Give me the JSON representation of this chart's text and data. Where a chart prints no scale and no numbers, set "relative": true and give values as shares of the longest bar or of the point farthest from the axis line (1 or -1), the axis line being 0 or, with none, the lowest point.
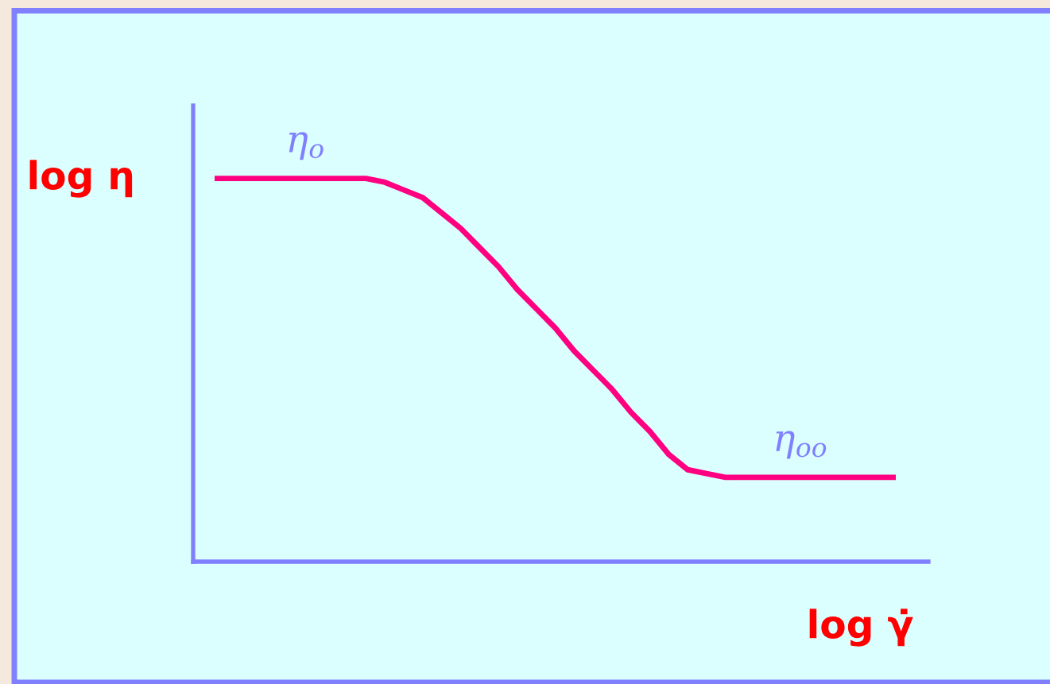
{
  "chart_data": {
    "type": "line",
    "xlabel": "log γ̇",
    "ylabel": "log η",
    "categories": [
      null,
      null,
      null,
      null,
      null,
      null,
      null,
      null,
      null,
      null,
      null,
      null,
      null,
      null,
      null,
      null,
      null,
      null,
      null,
      null,
      null,
      null,
      null,
      null,
      null,
      null,
      null,
      null,
      null,
      null,
      null,
      null,
      null,
      null,
      null,
      null,
      null
    ],
    "series": [
      {
        "color": "#ff0080",
        "values": [
          1.0,
          1.0,
          1.0,
          1.0,
          1.0,
          1.0,
          1.0,
          1.0,
          1.0,
          0.99,
          0.97,
          0.95,
          0.91,
          0.87,
          0.82,
          0.77,
          0.71,
          0.66,
          0.61,
          0.55,
          0.5,
          0.45,
          0.39,
          0.34,
          0.28,
          0.24,
          0.23,
          0.22,
          0.22,
          0.22,
          0.22,
          0.22,
          0.22,
          0.22,
          0.22,
          0.22,
          0.22
        ]
      }
    ],
    "relative": true,
    "tick_labels": false,
    "line_style": "solid",
    "annotations": [
      {
        "text": "η$_{o}$",
        "y": 1.0
      },
      {
        "text": "η$_{oo}$",
        "y": 0.22
      }
    ]
  }
}
